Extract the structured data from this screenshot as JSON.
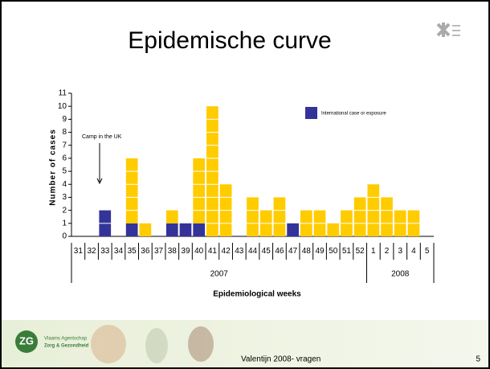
{
  "slide": {
    "title": "Epidemische curve",
    "footer": "Valentijn 2008- vragen",
    "page": "5",
    "logo": {
      "mark": "ZG",
      "line1": "Vlaams Agentschap",
      "line2": "Zorg & Gezondheid"
    }
  },
  "chart_data": {
    "type": "stacked-bar",
    "y_label": "Number of cases",
    "x_label": "Epidemiological weeks",
    "categories": [
      "31",
      "32",
      "33",
      "34",
      "35",
      "36",
      "37",
      "38",
      "39",
      "40",
      "41",
      "42",
      "43",
      "44",
      "45",
      "46",
      "47",
      "48",
      "49",
      "50",
      "51",
      "52",
      "1",
      "2",
      "3",
      "4",
      "5"
    ],
    "x_groups": [
      "2007",
      "2008"
    ],
    "series": [
      {
        "name": "International case or exposure",
        "color": "#333399",
        "values": [
          0,
          0,
          2,
          0,
          1,
          0,
          0,
          1,
          1,
          1,
          0,
          0,
          0,
          0,
          0,
          0,
          1,
          0,
          0,
          0,
          0,
          0,
          0,
          0,
          0,
          0,
          0
        ]
      },
      {
        "color": "#ffcc00",
        "values": [
          0,
          0,
          0,
          0,
          5,
          1,
          0,
          1,
          0,
          5,
          10,
          4,
          0,
          3,
          2,
          3,
          0,
          2,
          2,
          1,
          2,
          3,
          4,
          3,
          2,
          2,
          0
        ]
      }
    ],
    "ylim": [
      0,
      11
    ],
    "yticks": [
      0,
      1,
      2,
      3,
      4,
      5,
      6,
      7,
      8,
      9,
      10,
      11
    ],
    "annotation": "Camp in the UK"
  }
}
